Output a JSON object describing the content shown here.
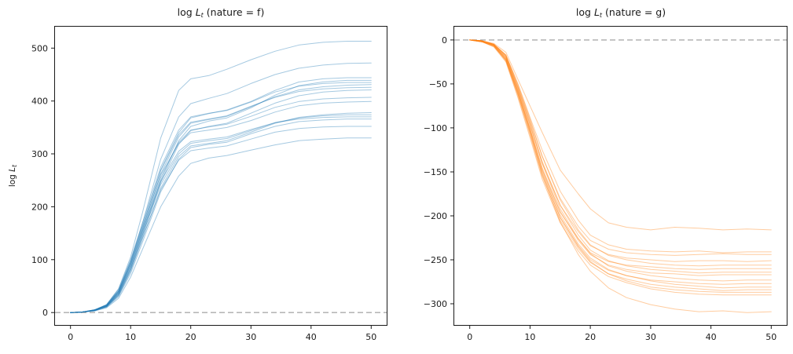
{
  "figure": {
    "background": "#ffffff",
    "text_color": "#1a1a1a",
    "spine_color": "#1a1a1a"
  },
  "chart_data": [
    {
      "type": "line",
      "title": "log L_t (nature = f)",
      "title_parts": {
        "pre": "log ",
        "var": "L",
        "sub": "t",
        "post": " (nature = f)"
      },
      "ylabel": "log L_t",
      "ylabel_parts": {
        "pre": "log ",
        "var": "L",
        "sub": "t"
      },
      "xlabel": "",
      "legend": "none",
      "grid": false,
      "line_color": "#1f77b4",
      "line_alpha": 0.4,
      "zero_line": {
        "y": 0,
        "color": "#ababab",
        "style": "dashed"
      },
      "xlim": [
        -2.7,
        52.7
      ],
      "ylim": [
        -25,
        542
      ],
      "xticks": [
        0,
        10,
        20,
        30,
        40,
        50
      ],
      "yticks": [
        0,
        100,
        200,
        300,
        400,
        500
      ],
      "x": [
        0,
        2,
        4,
        6,
        8,
        10,
        12,
        15,
        18,
        20,
        23,
        26,
        30,
        34,
        38,
        42,
        46,
        50
      ],
      "series": [
        [
          0,
          1,
          5,
          15,
          45,
          105,
          190,
          330,
          420,
          442,
          448,
          460,
          478,
          494,
          506,
          511,
          513,
          513
        ],
        [
          0,
          1,
          4,
          13,
          40,
          95,
          170,
          290,
          370,
          395,
          405,
          414,
          433,
          450,
          462,
          468,
          471,
          472
        ],
        [
          0,
          1,
          5,
          14,
          42,
          98,
          165,
          270,
          340,
          368,
          376,
          383,
          399,
          420,
          436,
          442,
          444,
          444
        ],
        [
          0,
          1,
          4,
          12,
          36,
          85,
          150,
          250,
          325,
          352,
          362,
          368,
          387,
          411,
          429,
          436,
          439,
          439
        ],
        [
          0,
          1,
          5,
          15,
          44,
          100,
          170,
          275,
          345,
          370,
          377,
          382,
          398,
          417,
          428,
          433,
          435,
          435
        ],
        [
          0,
          1,
          4,
          13,
          38,
          90,
          158,
          262,
          332,
          358,
          365,
          371,
          389,
          408,
          421,
          427,
          430,
          431
        ],
        [
          0,
          1,
          5,
          14,
          41,
          95,
          163,
          268,
          336,
          360,
          366,
          372,
          390,
          407,
          418,
          423,
          425,
          426
        ],
        [
          0,
          1,
          4,
          11,
          34,
          82,
          146,
          246,
          318,
          344,
          352,
          358,
          377,
          396,
          410,
          417,
          420,
          421
        ],
        [
          0,
          1,
          4,
          12,
          37,
          88,
          154,
          255,
          322,
          345,
          351,
          356,
          371,
          388,
          399,
          404,
          406,
          407
        ],
        [
          0,
          1,
          5,
          14,
          40,
          93,
          160,
          260,
          320,
          340,
          345,
          350,
          363,
          379,
          391,
          396,
          398,
          399
        ],
        [
          0,
          1,
          4,
          11,
          32,
          78,
          140,
          235,
          295,
          315,
          320,
          325,
          341,
          358,
          369,
          374,
          377,
          378
        ],
        [
          0,
          1,
          4,
          12,
          35,
          84,
          148,
          242,
          300,
          320,
          325,
          329,
          344,
          359,
          368,
          372,
          374,
          374
        ],
        [
          0,
          1,
          5,
          13,
          38,
          90,
          155,
          248,
          305,
          323,
          328,
          332,
          346,
          359,
          366,
          369,
          370,
          370
        ],
        [
          0,
          1,
          3,
          10,
          30,
          74,
          134,
          228,
          290,
          312,
          318,
          322,
          338,
          352,
          361,
          364,
          366,
          366
        ],
        [
          0,
          1,
          4,
          11,
          33,
          80,
          142,
          232,
          288,
          306,
          311,
          315,
          328,
          341,
          348,
          351,
          352,
          352
        ],
        [
          0,
          1,
          3,
          9,
          27,
          67,
          120,
          200,
          258,
          282,
          292,
          297,
          307,
          317,
          325,
          328,
          330,
          330
        ]
      ]
    },
    {
      "type": "line",
      "title": "log L_t (nature = g)",
      "title_parts": {
        "pre": "log ",
        "var": "L",
        "sub": "t",
        "post": " (nature = g)"
      },
      "ylabel": "",
      "xlabel": "",
      "legend": "none",
      "grid": false,
      "line_color": "#ff7f0e",
      "line_alpha": 0.4,
      "zero_line": {
        "y": 0,
        "color": "#ababab",
        "style": "dashed"
      },
      "xlim": [
        -2.7,
        52.7
      ],
      "ylim": [
        -325,
        16
      ],
      "xticks": [
        0,
        10,
        20,
        30,
        40,
        50
      ],
      "yticks": [
        0,
        -50,
        -100,
        -150,
        -200,
        -250,
        -300
      ],
      "x": [
        0,
        2,
        4,
        6,
        8,
        10,
        12,
        15,
        18,
        20,
        23,
        26,
        30,
        34,
        38,
        42,
        46,
        50
      ],
      "series": [
        [
          0,
          -1,
          -4,
          -14,
          -45,
          -75,
          -105,
          -148,
          -175,
          -192,
          -208,
          -213,
          -216,
          -213,
          -214,
          -216,
          -215,
          -216
        ],
        [
          0,
          -1,
          -5,
          -17,
          -50,
          -88,
          -125,
          -172,
          -205,
          -222,
          -233,
          -238,
          -240,
          -241,
          -240,
          -242,
          -241,
          -241
        ],
        [
          0,
          -1,
          -5,
          -18,
          -53,
          -92,
          -132,
          -180,
          -212,
          -228,
          -238,
          -242,
          -244,
          -245,
          -244,
          -243,
          -244,
          -244
        ],
        [
          0,
          -1,
          -6,
          -20,
          -56,
          -97,
          -140,
          -188,
          -218,
          -234,
          -244,
          -248,
          -250,
          -252,
          -251,
          -251,
          -252,
          -251
        ],
        [
          0,
          -1,
          -5,
          -17,
          -51,
          -90,
          -132,
          -182,
          -216,
          -233,
          -245,
          -250,
          -254,
          -256,
          -257,
          -256,
          -256,
          -256
        ],
        [
          0,
          -2,
          -7,
          -22,
          -60,
          -102,
          -147,
          -196,
          -226,
          -242,
          -252,
          -256,
          -258,
          -260,
          -261,
          -260,
          -260,
          -260
        ],
        [
          0,
          -1,
          -5,
          -18,
          -54,
          -94,
          -138,
          -188,
          -222,
          -239,
          -251,
          -257,
          -261,
          -263,
          -265,
          -264,
          -264,
          -264
        ],
        [
          0,
          -2,
          -6,
          -21,
          -58,
          -100,
          -145,
          -195,
          -228,
          -244,
          -256,
          -261,
          -265,
          -266,
          -268,
          -267,
          -267,
          -267
        ],
        [
          0,
          -1,
          -5,
          -19,
          -55,
          -96,
          -140,
          -192,
          -226,
          -243,
          -257,
          -263,
          -268,
          -271,
          -273,
          -274,
          -273,
          -273
        ],
        [
          0,
          -2,
          -7,
          -23,
          -62,
          -106,
          -152,
          -202,
          -234,
          -250,
          -262,
          -268,
          -273,
          -275,
          -277,
          -278,
          -277,
          -277
        ],
        [
          0,
          -1,
          -6,
          -20,
          -58,
          -101,
          -148,
          -199,
          -232,
          -248,
          -261,
          -268,
          -274,
          -278,
          -280,
          -282,
          -281,
          -281
        ],
        [
          0,
          -2,
          -7,
          -24,
          -64,
          -108,
          -155,
          -205,
          -237,
          -253,
          -266,
          -272,
          -278,
          -281,
          -283,
          -285,
          -284,
          -284
        ],
        [
          0,
          -1,
          -6,
          -22,
          -60,
          -103,
          -150,
          -202,
          -235,
          -252,
          -266,
          -274,
          -281,
          -284,
          -286,
          -287,
          -287,
          -287
        ],
        [
          0,
          -2,
          -8,
          -25,
          -66,
          -111,
          -158,
          -208,
          -240,
          -256,
          -269,
          -276,
          -283,
          -287,
          -289,
          -290,
          -290,
          -290
        ],
        [
          0,
          -2,
          -7,
          -23,
          -62,
          -105,
          -153,
          -207,
          -244,
          -263,
          -282,
          -293,
          -301,
          -306,
          -309,
          -308,
          -310,
          -309
        ]
      ]
    }
  ]
}
